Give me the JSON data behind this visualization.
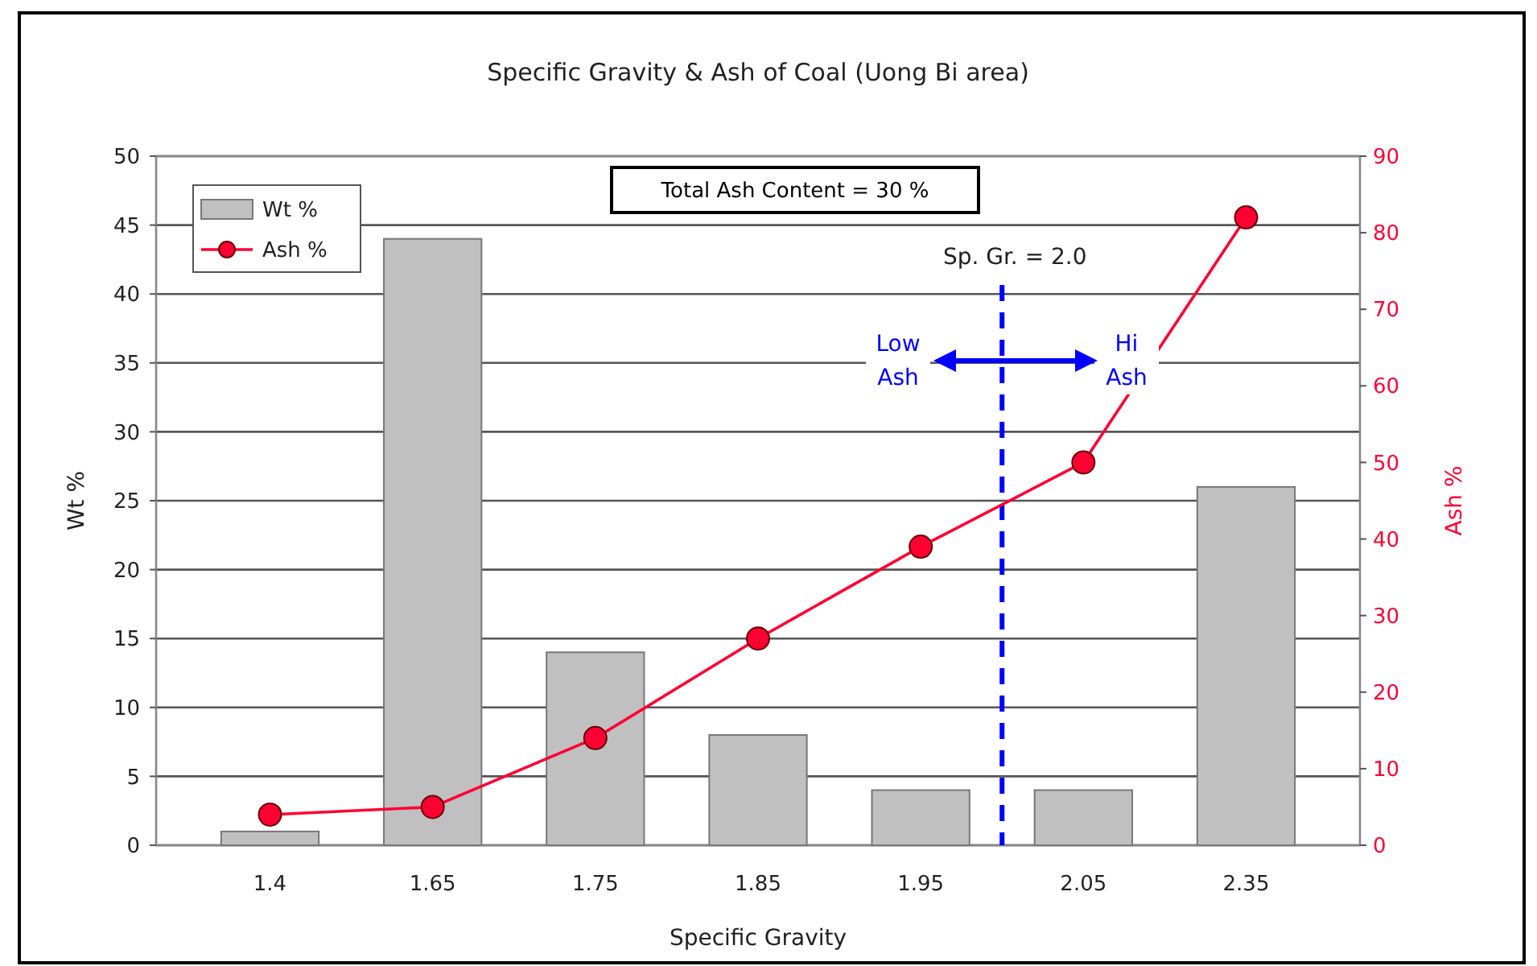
{
  "chart_data": {
    "type": "bar",
    "title": "Specific Gravity & Ash of Coal (Uong Bi area)",
    "xlabel": "Specific Gravity",
    "ylabel": "Wt %",
    "y2label": "Ash %",
    "categories": [
      "1.4",
      "1.65",
      "1.75",
      "1.85",
      "1.95",
      "2.05",
      "2.35"
    ],
    "series": [
      {
        "name": "Wt %",
        "color": "#c0c0c0",
        "values": [
          1,
          44,
          14,
          8,
          4,
          4,
          26
        ]
      },
      {
        "name": "Ash %",
        "type": "line",
        "axis": "y2",
        "color": "#ff0033",
        "marker": "circle",
        "values": [
          4,
          5,
          14,
          27,
          39,
          50,
          82
        ]
      }
    ],
    "ylim": [
      0,
      50
    ],
    "yticks": [
      0,
      5,
      10,
      15,
      20,
      25,
      30,
      35,
      40,
      45,
      50
    ],
    "y2lim": [
      0,
      90
    ],
    "y2ticks": [
      0,
      10,
      20,
      30,
      40,
      50,
      60,
      70,
      80,
      90
    ],
    "grid": "y",
    "legend": "top left",
    "annotations": [
      "Total Ash Content = 30 %",
      "Low Ash",
      "Hi Ash",
      "Sp. Gr. = 2.0"
    ]
  }
}
